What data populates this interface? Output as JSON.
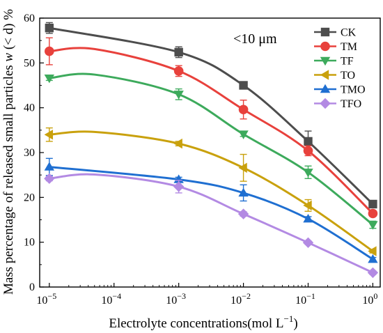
{
  "chart_data": {
    "type": "line",
    "xlabel_main": "Electrolyte concentrations(mol L",
    "xlabel_sup": "−1",
    "xlabel_end": ")",
    "ylabel": "Mass percentage of released small particles",
    "ylabel_var": "w",
    "ylabel_suffix": " (< d) %",
    "annotation": "<10 μm",
    "x_scale": "log",
    "x_ticks": [
      {
        "value": 1e-05,
        "base": "10",
        "exp": "−5"
      },
      {
        "value": 0.0001,
        "base": "10",
        "exp": "−4"
      },
      {
        "value": 0.001,
        "base": "10",
        "exp": "−3"
      },
      {
        "value": 0.01,
        "base": "10",
        "exp": "−2"
      },
      {
        "value": 0.1,
        "base": "10",
        "exp": "−1"
      },
      {
        "value": 1,
        "base": "10",
        "exp": "0"
      }
    ],
    "xlim": [
      7.1e-06,
      1.3
    ],
    "ylim": [
      0,
      60
    ],
    "y_ticks": [
      0,
      10,
      20,
      30,
      40,
      50,
      60
    ],
    "y_tick_labels": [
      "0",
      "10",
      "20",
      "30",
      "40",
      "50",
      "60"
    ],
    "x": [
      1e-05,
      0.001,
      0.01,
      0.1,
      1
    ],
    "legend_position": "top-right",
    "series": [
      {
        "name": "CK",
        "color": "#4d4d4d",
        "marker": "square",
        "values": [
          57.8,
          52.4,
          45.0,
          32.5,
          18.5
        ],
        "errors": [
          1.2,
          1.2,
          0.8,
          2.3,
          0.5
        ],
        "curve_peak_x": 1e-05,
        "curve_peak_y": 57.8
      },
      {
        "name": "TM",
        "color": "#e8413c",
        "marker": "circle",
        "values": [
          52.6,
          48.2,
          39.6,
          30.4,
          16.4
        ],
        "errors": [
          3.0,
          1.2,
          2.1,
          1.1,
          0.6
        ],
        "curve_peak_x": 5e-05,
        "curve_peak_y": 53.1
      },
      {
        "name": "TF",
        "color": "#3daa5c",
        "marker": "triangle-down",
        "values": [
          46.6,
          43.0,
          34.1,
          25.6,
          13.9
        ],
        "errors": [
          0.5,
          1.2,
          0.5,
          1.4,
          0.8
        ],
        "curve_peak_x": 5e-05,
        "curve_peak_y": 47.4
      },
      {
        "name": "TO",
        "color": "#c9a10d",
        "marker": "triangle-left",
        "values": [
          34.0,
          32.0,
          26.6,
          18.2,
          8.0
        ],
        "errors": [
          1.5,
          0.5,
          3.0,
          1.3,
          0.4
        ],
        "curve_peak_x": 5e-05,
        "curve_peak_y": 34.6
      },
      {
        "name": "TMO",
        "color": "#1f6fd1",
        "marker": "triangle-up",
        "values": [
          26.8,
          24.0,
          21.0,
          15.2,
          6.2
        ],
        "errors": [
          1.9,
          0.5,
          1.8,
          0.5,
          0.4
        ],
        "curve_peak_x": 1e-05,
        "curve_peak_y": 26.8
      },
      {
        "name": "TFO",
        "color": "#b38ae3",
        "marker": "diamond",
        "values": [
          24.2,
          22.4,
          16.3,
          9.9,
          3.2
        ],
        "errors": [
          0.5,
          1.4,
          0.5,
          0.4,
          0.4
        ],
        "curve_peak_x": 5e-05,
        "curve_peak_y": 25.1
      }
    ]
  }
}
